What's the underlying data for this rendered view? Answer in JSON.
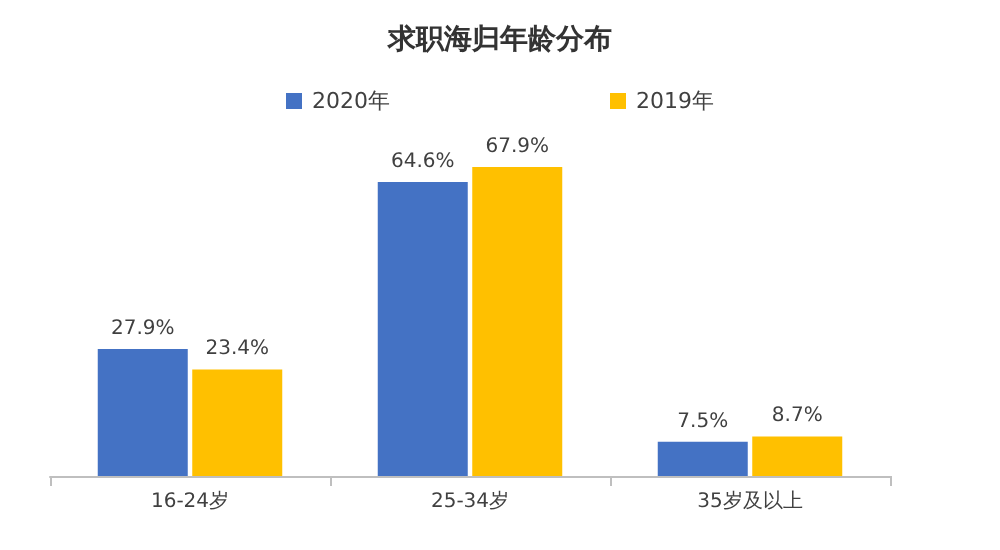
{
  "chart_data": {
    "type": "bar",
    "title": "求职海归年龄分布",
    "categories": [
      "16-24岁",
      "25-34岁",
      "35岁及以上"
    ],
    "series": [
      {
        "name": "2020年",
        "color": "#4472c4",
        "values": [
          27.9,
          64.6,
          7.5
        ],
        "value_labels": [
          "27.9%",
          "64.6%",
          "7.5%"
        ]
      },
      {
        "name": "2019年",
        "color": "#ffc000",
        "values": [
          23.4,
          67.9,
          8.7
        ],
        "value_labels": [
          "23.4%",
          "67.9%",
          "8.7%"
        ]
      }
    ],
    "legend": "top"
  }
}
